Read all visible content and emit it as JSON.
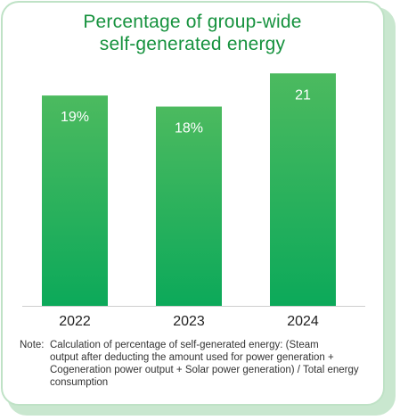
{
  "title_lines": [
    "Percentage of group-wide",
    "self-generated energy"
  ],
  "chart_data": {
    "type": "bar",
    "title": "Percentage of group-wide self-generated energy",
    "categories": [
      "2022",
      "2023",
      "2024"
    ],
    "values": [
      19,
      18,
      21
    ],
    "data_labels": [
      "19%",
      "18%",
      "21"
    ],
    "unit": "%",
    "ylim": [
      0,
      23.6
    ],
    "grid": false,
    "legend": "none",
    "colors": {
      "bar_top": "#4cba5f",
      "bar_bottom": "#0ca95a",
      "label": "#ffffff",
      "axis": "#cfcfcf"
    }
  },
  "note": {
    "label": "Note:",
    "lines": [
      "Calculation of percentage of self-generated energy: (Steam",
      "output after deducting the amount used for power generation +",
      "Cogeneration power output + Solar power generation) / Total energy",
      "consumption"
    ]
  }
}
